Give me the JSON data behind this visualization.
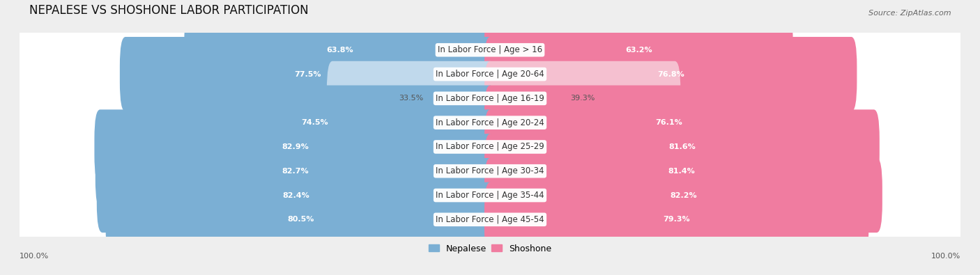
{
  "title": "NEPALESE VS SHOSHONE LABOR PARTICIPATION",
  "source": "Source: ZipAtlas.com",
  "categories": [
    "In Labor Force | Age > 16",
    "In Labor Force | Age 20-64",
    "In Labor Force | Age 16-19",
    "In Labor Force | Age 20-24",
    "In Labor Force | Age 25-29",
    "In Labor Force | Age 30-34",
    "In Labor Force | Age 35-44",
    "In Labor Force | Age 45-54"
  ],
  "nepalese_values": [
    63.8,
    77.5,
    33.5,
    74.5,
    82.9,
    82.7,
    82.4,
    80.5
  ],
  "shoshone_values": [
    63.2,
    76.8,
    39.3,
    76.1,
    81.6,
    81.4,
    82.2,
    79.3
  ],
  "nepalese_color": "#7bafd4",
  "shoshone_color": "#f07ca0",
  "nepalese_color_light": "#c0d9ec",
  "shoshone_color_light": "#f5c0d0",
  "background_color": "#eeeeee",
  "title_fontsize": 12,
  "label_fontsize": 8.5,
  "value_fontsize": 8,
  "legend_fontsize": 9,
  "axis_label_fontsize": 8
}
